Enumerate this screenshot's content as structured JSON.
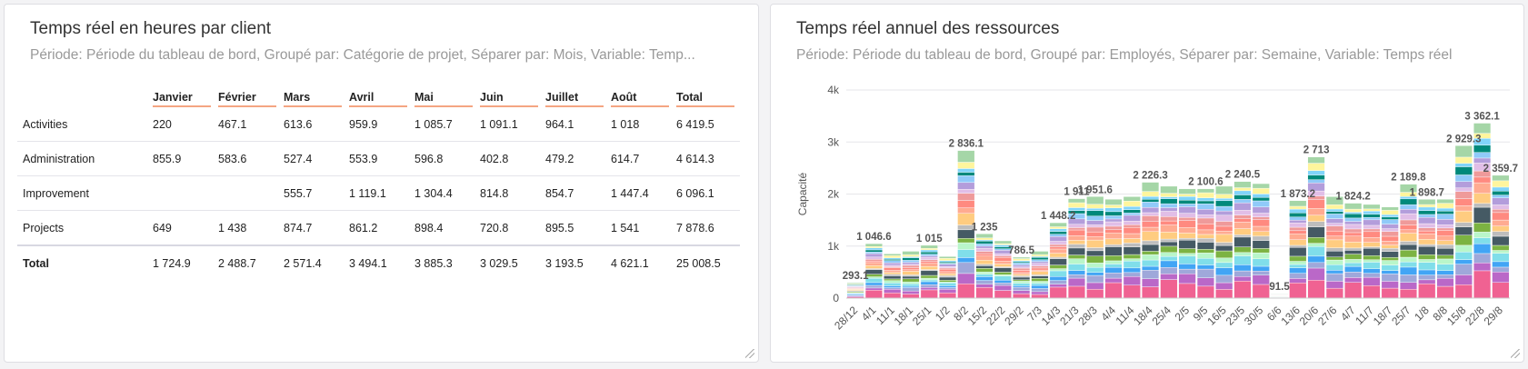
{
  "left_panel": {
    "title": "Temps réel en heures par client",
    "subtitle": "Période: Période du tableau de bord, Groupé par: Catégorie de projet, Séparer par: Mois, Variable: Temp...",
    "columns": [
      "Janvier",
      "Février",
      "Mars",
      "Avril",
      "Mai",
      "Juin",
      "Juillet",
      "Août",
      "Total"
    ],
    "rows": [
      {
        "label": "Activities",
        "values": [
          "220",
          "467.1",
          "613.6",
          "959.9",
          "1 085.7",
          "1 091.1",
          "964.1",
          "1 018",
          "6 419.5"
        ]
      },
      {
        "label": "Administration",
        "values": [
          "855.9",
          "583.6",
          "527.4",
          "553.9",
          "596.8",
          "402.8",
          "479.2",
          "614.7",
          "4 614.3"
        ]
      },
      {
        "label": "Improvement",
        "values": [
          "",
          "",
          "555.7",
          "1 119.1",
          "1 304.4",
          "814.8",
          "854.7",
          "1 447.4",
          "6 096.1"
        ]
      },
      {
        "label": "Projects",
        "values": [
          "649",
          "1 438",
          "874.7",
          "861.2",
          "898.4",
          "720.8",
          "895.5",
          "1 541",
          "7 878.6"
        ]
      }
    ],
    "total_row": {
      "label": "Total",
      "values": [
        "1 724.9",
        "2 488.7",
        "2 571.4",
        "3 494.1",
        "3 885.3",
        "3 029.5",
        "3 193.5",
        "4 621.1",
        "25 008.5"
      ]
    }
  },
  "right_panel": {
    "title": "Temps réel annuel des ressources",
    "subtitle": "Période: Période du tableau de bord, Groupé par: Employés, Séparer par: Semaine, Variable: Temps réel"
  },
  "chart_data": {
    "type": "bar",
    "stacked": true,
    "ylabel": "Capacité",
    "ylim": [
      0,
      4000
    ],
    "yticks": [
      "0",
      "1k",
      "2k",
      "3k",
      "4k"
    ],
    "x_tick_labels": [
      "28/12",
      "4/1",
      "11/1",
      "18/1",
      "25/1",
      "1/2",
      "8/2",
      "15/2",
      "22/2",
      "29/2",
      "7/3",
      "14/3",
      "21/3",
      "28/3",
      "4/4",
      "11/4",
      "18/4",
      "25/4",
      "2/5",
      "9/5",
      "16/5",
      "23/5",
      "30/5",
      "6/6",
      "13/6",
      "20/6",
      "27/6",
      "4/7",
      "11/7",
      "18/7",
      "25/7",
      "1/8",
      "8/8",
      "15/8",
      "22/8",
      "29/8"
    ],
    "weekly_totals": [
      293.1,
      1046.6,
      850,
      900,
      1015,
      800,
      2836.1,
      1235,
      1100,
      786.5,
      900,
      1448.2,
      1911,
      1951.6,
      1900,
      1950,
      2226.3,
      2150,
      2100,
      2100.6,
      2150,
      2240.5,
      2200,
      91.5,
      1873.2,
      2713,
      1950,
      1824.2,
      1800,
      1750,
      2189.8,
      1898.7,
      1900,
      2929.3,
      3362.1,
      2359.7
    ],
    "data_labels": [
      {
        "week": 0,
        "text": "293.1"
      },
      {
        "week": 1,
        "text": "1 046.6"
      },
      {
        "week": 4,
        "text": "1 015"
      },
      {
        "week": 6,
        "text": "2 836.1"
      },
      {
        "week": 7,
        "text": "1 235"
      },
      {
        "week": 9,
        "text": "786.5"
      },
      {
        "week": 11,
        "text": "1 448.2"
      },
      {
        "week": 12,
        "text": "1 911"
      },
      {
        "week": 13,
        "text": "1 951.6"
      },
      {
        "week": 16,
        "text": "2 226.3"
      },
      {
        "week": 19,
        "text": "2 100.6"
      },
      {
        "week": 21,
        "text": "2 240.5"
      },
      {
        "week": 23,
        "text": "91.5"
      },
      {
        "week": 24,
        "text": "1 873.2"
      },
      {
        "week": 25,
        "text": "2 713"
      },
      {
        "week": 27,
        "text": "1 824.2"
      },
      {
        "week": 30,
        "text": "2 189.8"
      },
      {
        "week": 31,
        "text": "1 898.7"
      },
      {
        "week": 33,
        "text": "2 929.3"
      },
      {
        "week": 34,
        "text": "3 362.1"
      },
      {
        "week": 35,
        "text": "2 359.7"
      }
    ],
    "series_colors": [
      "#f06292",
      "#ba68c8",
      "#9fa8da",
      "#42a5f5",
      "#80deea",
      "#b9f6ca",
      "#7cb342",
      "#455a64",
      "#bdbdbd",
      "#ffcc80",
      "#ffab91",
      "#ff8a80",
      "#ef9a9a",
      "#e1bee7",
      "#b39ddb",
      "#90caf9",
      "#00897b",
      "#81d4fa",
      "#fff59d",
      "#a5d6a7"
    ]
  }
}
